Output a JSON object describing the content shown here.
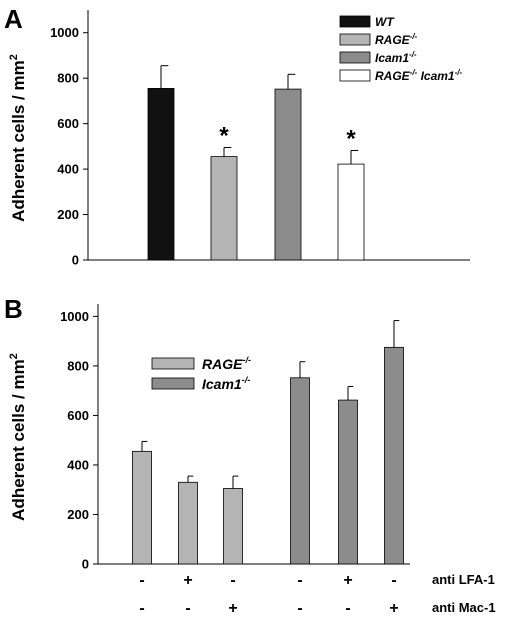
{
  "chart_data": [
    {
      "type": "bar",
      "panel": "A",
      "ylabel": "Adherent cells / mm",
      "ylabel_sup": "2",
      "ylim": [
        0,
        1100
      ],
      "yticks": [
        "0",
        "200",
        "400",
        "600",
        "800",
        "1000"
      ],
      "ytick_values": [
        0,
        200,
        400,
        600,
        800,
        1000
      ],
      "grid": false,
      "legend": "top-right",
      "categories": [
        "WT",
        "RAGE-/-",
        "Icam1-/-",
        "RAGE-/- Icam1-/-"
      ],
      "values": [
        755,
        455,
        752,
        422
      ],
      "errors": [
        100,
        40,
        65,
        60
      ],
      "colors": [
        "#111111",
        "#b4b4b4",
        "#8c8c8c",
        "#ffffff"
      ],
      "significance": [
        "",
        "*",
        "",
        "*"
      ],
      "legend_entries": [
        {
          "base": "WT",
          "sup": "",
          "base2": "",
          "sup2": "",
          "italic": false,
          "color": "#111111"
        },
        {
          "base": "RAGE",
          "sup": "-/-",
          "base2": "",
          "sup2": "",
          "italic": true,
          "color": "#b4b4b4"
        },
        {
          "base": "Icam1",
          "sup": "-/-",
          "base2": "",
          "sup2": "",
          "italic": true,
          "color": "#8c8c8c"
        },
        {
          "base": "RAGE",
          "sup": "-/-",
          "base2": " Icam1",
          "sup2": "-/-",
          "italic": true,
          "color": "#ffffff"
        }
      ]
    },
    {
      "type": "bar",
      "panel": "B",
      "ylabel": "Adherent cells / mm",
      "ylabel_sup": "2",
      "ylim": [
        0,
        1050
      ],
      "yticks": [
        "0",
        "200",
        "400",
        "600",
        "800",
        "1000"
      ],
      "ytick_values": [
        0,
        200,
        400,
        600,
        800,
        1000
      ],
      "grid": false,
      "legend": "top-left",
      "series": [
        {
          "name": "RAGE-/-",
          "base": "RAGE",
          "sup": "-/-",
          "color": "#b4b4b4",
          "values": [
            455,
            330,
            305
          ],
          "errors": [
            40,
            25,
            50
          ]
        },
        {
          "name": "Icam1-/-",
          "base": "Icam1",
          "sup": "-/-",
          "color": "#8c8c8c",
          "values": [
            752,
            662,
            875
          ],
          "errors": [
            65,
            55,
            108
          ]
        }
      ],
      "conditions": [
        {
          "label": "anti LFA-1",
          "values": [
            "-",
            "+",
            "-",
            "-",
            "+",
            "-"
          ]
        },
        {
          "label": "anti Mac-1",
          "values": [
            "-",
            "-",
            "+",
            "-",
            "-",
            "+"
          ]
        }
      ]
    }
  ]
}
